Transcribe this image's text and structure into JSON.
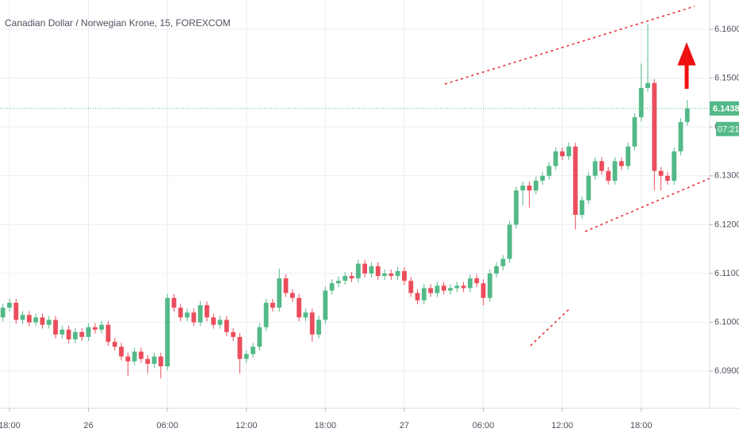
{
  "chart_data": {
    "type": "candlestick",
    "title": "Canadian Dollar / Norwegian Krone, 15, FOREXCOM",
    "up_color": "#53b987",
    "down_color": "#eb4d5c",
    "grid": true,
    "xlim": [
      -0.72,
      53.2
    ],
    "ylim": [
      6.0824,
      6.166
    ],
    "xticks": [
      {
        "value": 0,
        "label": "18:00"
      },
      {
        "value": 6,
        "label": "26"
      },
      {
        "value": 12,
        "label": "06:00"
      },
      {
        "value": 18,
        "label": "12:00"
      },
      {
        "value": 24,
        "label": "18:00"
      },
      {
        "value": 30,
        "label": "27"
      },
      {
        "value": 36,
        "label": "06:00"
      },
      {
        "value": 42,
        "label": "12:00"
      },
      {
        "value": 48,
        "label": "18:00"
      }
    ],
    "yticks": [
      {
        "value": 6.09,
        "label": "6.09000"
      },
      {
        "value": 6.1,
        "label": "6.10000"
      },
      {
        "value": 6.11,
        "label": "6.11000"
      },
      {
        "value": 6.12,
        "label": "6.12000"
      },
      {
        "value": 6.13,
        "label": "6.13000"
      },
      {
        "value": 6.14,
        "label": "6.14000"
      },
      {
        "value": 6.15,
        "label": "6.15000"
      },
      {
        "value": 6.16,
        "label": "6.16000"
      }
    ],
    "last_price": {
      "value": 6.1438,
      "label": "6.14380"
    },
    "countdown": "07:21",
    "x": [
      -0.5,
      0,
      0.5,
      1,
      1.5,
      2,
      2.5,
      3,
      3.5,
      4,
      4.5,
      5,
      5.5,
      6,
      6.5,
      7,
      7.5,
      8,
      8.5,
      9,
      9.5,
      10,
      10.5,
      11,
      11.5,
      12,
      12.5,
      13,
      13.5,
      14,
      14.5,
      15,
      15.5,
      16,
      16.5,
      17,
      17.5,
      18,
      18.5,
      19,
      19.5,
      20,
      20.5,
      21,
      21.5,
      22,
      22.5,
      23,
      23.5,
      24,
      24.5,
      25,
      25.5,
      26,
      26.5,
      27,
      27.5,
      28,
      28.5,
      29,
      29.5,
      30,
      30.5,
      31,
      31.5,
      32,
      32.5,
      33,
      33.5,
      34,
      34.5,
      35,
      35.5,
      36,
      36.5,
      37,
      37.5,
      38,
      38.5,
      39,
      39.5,
      40,
      40.5,
      41,
      41.5,
      42,
      42.5,
      43,
      43.5,
      44,
      44.5,
      45,
      45.5,
      46,
      46.5,
      47,
      47.5,
      48,
      48.5,
      49,
      49.5,
      50,
      50.5,
      51,
      51.5
    ],
    "open": [
      6.101,
      6.103,
      6.104,
      6.1005,
      6.1015,
      6.1,
      6.101,
      6.0995,
      6.1005,
      6.0975,
      6.0985,
      6.0965,
      6.098,
      6.097,
      6.099,
      6.0985,
      6.0995,
      6.096,
      6.095,
      6.093,
      6.092,
      6.094,
      6.0925,
      6.0915,
      6.093,
      6.091,
      6.105,
      6.103,
      6.101,
      6.102,
      6.1,
      6.1035,
      6.101,
      6.0995,
      6.1005,
      6.098,
      6.097,
      6.0925,
      6.0935,
      6.095,
      6.099,
      6.104,
      6.103,
      6.109,
      6.106,
      6.105,
      6.101,
      6.102,
      6.0975,
      6.1005,
      6.1065,
      6.108,
      6.1085,
      6.1095,
      6.109,
      6.112,
      6.11,
      6.1115,
      6.1095,
      6.11,
      6.1095,
      6.1105,
      6.1085,
      6.106,
      6.1045,
      6.107,
      6.106,
      6.1075,
      6.1065,
      6.107,
      6.1075,
      6.107,
      6.109,
      6.108,
      6.105,
      6.11,
      6.1115,
      6.113,
      6.12,
      6.127,
      6.128,
      6.127,
      6.129,
      6.13,
      6.132,
      6.135,
      6.134,
      6.136,
      6.122,
      6.125,
      6.13,
      6.133,
      6.131,
      6.129,
      6.133,
      6.132,
      6.136,
      6.142,
      6.148,
      6.149,
      6.131,
      6.13,
      6.129,
      6.135,
      6.141
    ],
    "high": [
      6.1038,
      6.1048,
      6.1048,
      6.1023,
      6.1023,
      6.1018,
      6.1018,
      6.1013,
      6.1013,
      6.0993,
      6.0993,
      6.0988,
      6.0988,
      6.0998,
      6.0998,
      6.1003,
      6.1003,
      6.0968,
      6.0958,
      6.0938,
      6.0948,
      6.0948,
      6.0933,
      6.0938,
      6.0938,
      6.1058,
      6.1058,
      6.1038,
      6.1028,
      6.1028,
      6.1043,
      6.1043,
      6.1018,
      6.1013,
      6.1013,
      6.0988,
      6.0978,
      6.0943,
      6.0958,
      6.0998,
      6.1048,
      6.1048,
      6.111,
      6.1098,
      6.1068,
      6.1058,
      6.1028,
      6.1028,
      6.1013,
      6.1073,
      6.1088,
      6.1093,
      6.1103,
      6.1103,
      6.1128,
      6.1128,
      6.1123,
      6.1123,
      6.1108,
      6.1108,
      6.1113,
      6.1113,
      6.1093,
      6.1068,
      6.1078,
      6.1078,
      6.1083,
      6.1083,
      6.1078,
      6.1083,
      6.1083,
      6.1098,
      6.1098,
      6.1088,
      6.1108,
      6.1123,
      6.1138,
      6.1208,
      6.1278,
      6.1288,
      6.1288,
      6.1298,
      6.1308,
      6.1328,
      6.1358,
      6.1358,
      6.1368,
      6.1368,
      6.1258,
      6.1308,
      6.1338,
      6.1338,
      6.1318,
      6.1338,
      6.1338,
      6.1368,
      6.1428,
      6.153,
      6.161,
      6.1498,
      6.1318,
      6.1308,
      6.1358,
      6.1418,
      6.1455
    ],
    "low": [
      6.1002,
      6.1022,
      6.0997,
      6.0997,
      6.0992,
      6.0992,
      6.0987,
      6.0987,
      6.0967,
      6.0967,
      6.0957,
      6.0957,
      6.0962,
      6.0962,
      6.0977,
      6.0977,
      6.0952,
      6.0942,
      6.0922,
      6.089,
      6.0912,
      6.0917,
      6.0895,
      6.0907,
      6.0885,
      6.0902,
      6.1022,
      6.1002,
      6.1002,
      6.0992,
      6.0992,
      6.1002,
      6.0987,
      6.0987,
      6.0972,
      6.0962,
      6.0895,
      6.0917,
      6.0927,
      6.0942,
      6.0982,
      6.1022,
      6.1022,
      6.1052,
      6.1042,
      6.1002,
      6.1002,
      6.096,
      6.0967,
      6.0997,
      6.1057,
      6.1072,
      6.1077,
      6.1082,
      6.1082,
      6.1092,
      6.1092,
      6.1087,
      6.1087,
      6.1087,
      6.1087,
      6.1077,
      6.1052,
      6.1037,
      6.1037,
      6.1052,
      6.1052,
      6.1057,
      6.1057,
      6.1062,
      6.1062,
      6.1062,
      6.1072,
      6.1035,
      6.1042,
      6.1092,
      6.1107,
      6.1122,
      6.1192,
      6.124,
      6.1235,
      6.1262,
      6.1282,
      6.1292,
      6.1312,
      6.1332,
      6.1332,
      6.119,
      6.1212,
      6.1242,
      6.1292,
      6.1302,
      6.1282,
      6.1282,
      6.1312,
      6.1312,
      6.1352,
      6.1412,
      6.1472,
      6.127,
      6.127,
      6.1282,
      6.1282,
      6.1342,
      6.1402
    ],
    "close": [
      6.103,
      6.104,
      6.1005,
      6.1015,
      6.1,
      6.101,
      6.0995,
      6.1005,
      6.0975,
      6.0985,
      6.0965,
      6.098,
      6.097,
      6.099,
      6.0985,
      6.0995,
      6.096,
      6.095,
      6.093,
      6.092,
      6.094,
      6.0925,
      6.0915,
      6.093,
      6.091,
      6.105,
      6.103,
      6.101,
      6.102,
      6.1,
      6.1035,
      6.101,
      6.0995,
      6.1005,
      6.098,
      6.097,
      6.0925,
      6.0935,
      6.095,
      6.099,
      6.104,
      6.103,
      6.109,
      6.106,
      6.105,
      6.101,
      6.102,
      6.0975,
      6.1005,
      6.1065,
      6.108,
      6.1085,
      6.1095,
      6.109,
      6.112,
      6.11,
      6.1115,
      6.1095,
      6.11,
      6.1095,
      6.1105,
      6.1085,
      6.106,
      6.1045,
      6.107,
      6.106,
      6.1075,
      6.1065,
      6.107,
      6.1075,
      6.107,
      6.109,
      6.108,
      6.105,
      6.11,
      6.1115,
      6.113,
      6.12,
      6.127,
      6.128,
      6.127,
      6.129,
      6.13,
      6.132,
      6.135,
      6.134,
      6.136,
      6.122,
      6.125,
      6.13,
      6.133,
      6.131,
      6.129,
      6.133,
      6.132,
      6.136,
      6.142,
      6.148,
      6.149,
      6.131,
      6.13,
      6.129,
      6.135,
      6.141,
      6.1438
    ]
  }
}
